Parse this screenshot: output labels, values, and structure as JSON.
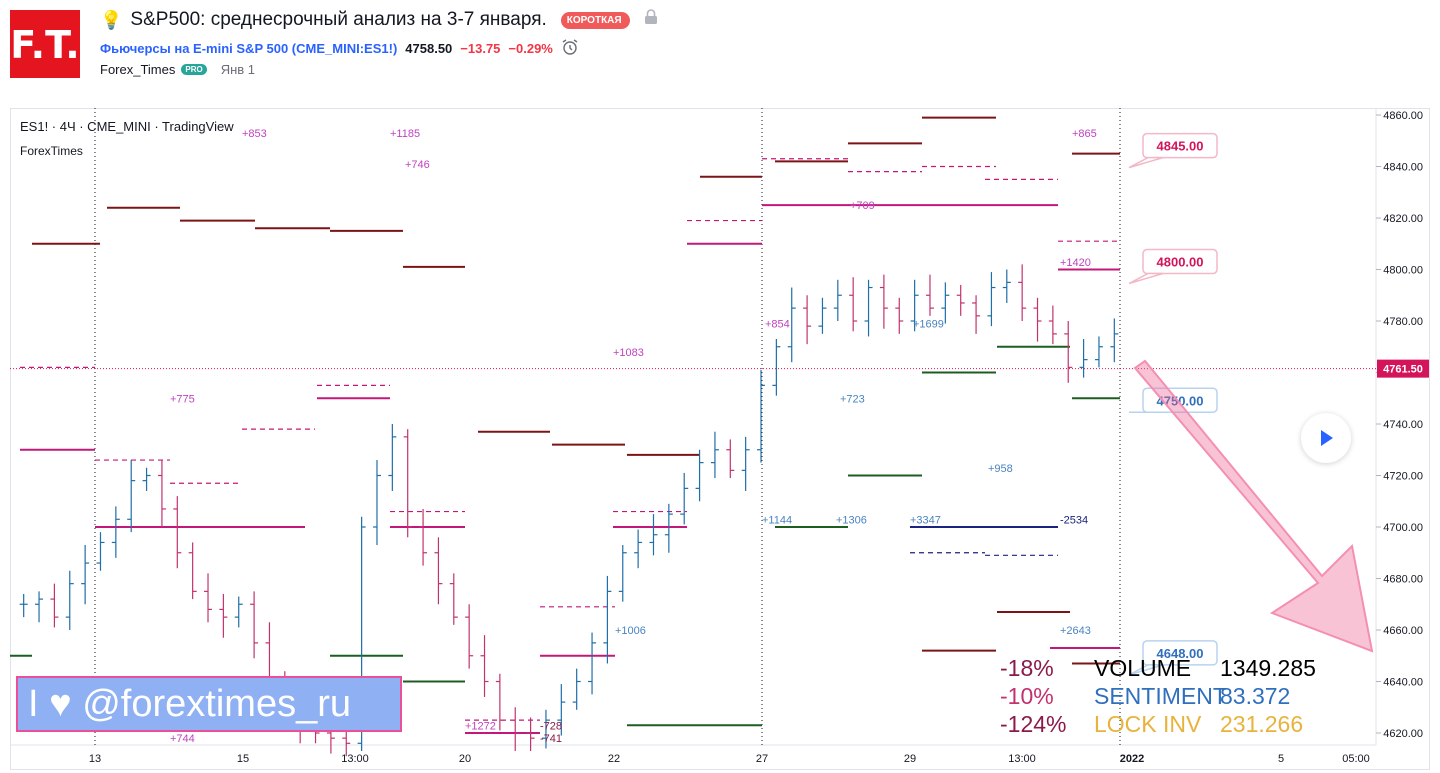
{
  "header": {
    "title": "S&P500: среднесрочный анализ на 3-7 января.",
    "badge": "КОРОТКАЯ",
    "symbol_name": "Фьючерсы на E-mini S&P 500",
    "symbol_code": "CME_MINI:ES1!",
    "price": "4758.50",
    "change": "−13.75",
    "change_pct": "−0.29%",
    "author": "Forex_Times",
    "author_badge": "PRO",
    "date": "Янв 1"
  },
  "logo": {
    "text": "F.T."
  },
  "legend": {
    "line1": "ES1! · 4Ч · CME_MINI · TradingView",
    "line2": "ForexTimes"
  },
  "watermark": {
    "text": "I ♥ @forextimes_ru"
  },
  "stats": [
    {
      "pct": "-18%",
      "label": "VOLUME",
      "value": "1349.285",
      "pct_color": "#8b1a4a",
      "color": "#000000"
    },
    {
      "pct": "-10%",
      "label": "SENTIMENT",
      "value": "83.372",
      "pct_color": "#c2326f",
      "color": "#2f6fbe"
    },
    {
      "pct": "-124%",
      "label": "LOCK INV",
      "value": "231.266",
      "pct_color": "#8b1a4a",
      "color": "#e8b33d"
    }
  ],
  "chart_data": {
    "type": "candlestick",
    "ylim": [
      4616,
      4862
    ],
    "y_ticks": [
      "4860.00",
      "4840.00",
      "4820.00",
      "4800.00",
      "4780.00",
      "4760.00",
      "4740.00",
      "4720.00",
      "4700.00",
      "4680.00",
      "4660.00",
      "4640.00",
      "4620.00"
    ],
    "x_ticks": [
      "13",
      "15",
      "13:00",
      "20",
      "22",
      "27",
      "29",
      "13:00",
      "2022",
      "5",
      "05:00"
    ],
    "current_price": "4761.50",
    "target_labels": [
      "4845.00",
      "4800.00",
      "4750.00",
      "4648.00"
    ],
    "level_annotations": [
      {
        "text": "+853",
        "y": 4853
      },
      {
        "text": "+1185",
        "y": 4853
      },
      {
        "text": "+746",
        "y": 4841
      },
      {
        "text": "+865",
        "y": 4853
      },
      {
        "text": "+709",
        "y": 4825
      },
      {
        "text": "+1420",
        "y": 4803
      },
      {
        "text": "+854",
        "y": 4779
      },
      {
        "text": "+1699",
        "y": 4779
      },
      {
        "text": "+1083",
        "y": 4768
      },
      {
        "text": "+775",
        "y": 4750
      },
      {
        "text": "+723",
        "y": 4750
      },
      {
        "text": "+958",
        "y": 4723
      },
      {
        "text": "+1144",
        "y": 4703
      },
      {
        "text": "+1306",
        "y": 4703
      },
      {
        "text": "+3347",
        "y": 4703
      },
      {
        "text": "-2534",
        "y": 4703
      },
      {
        "text": "+1006",
        "y": 4660
      },
      {
        "text": "+2643",
        "y": 4660
      },
      {
        "text": "+1272",
        "y": 4623
      },
      {
        "text": "-728",
        "y": 4623
      },
      {
        "text": "-741",
        "y": 4618
      },
      {
        "text": "+744",
        "y": 4618
      }
    ],
    "candles": [
      4670,
      4672,
      4665,
      4678,
      4686,
      4694,
      4703,
      4718,
      4720,
      4707,
      4690,
      4675,
      4668,
      4665,
      4670,
      4655,
      4640,
      4632,
      4625,
      4620,
      4618,
      4616,
      4700,
      4720,
      4735,
      4700,
      4690,
      4678,
      4665,
      4650,
      4640,
      4625,
      4620,
      4618,
      4625,
      4632,
      4640,
      4655,
      4675,
      4690,
      4694,
      4697,
      4705,
      4715,
      4725,
      4730,
      4722,
      4730,
      4755,
      4770,
      4785,
      4778,
      4785,
      4790,
      4780,
      4793,
      4785,
      4780,
      4790,
      4785,
      4790,
      4787,
      4782,
      4793,
      4795,
      4785,
      4780,
      4775,
      4762,
      4765,
      4770,
      4775
    ]
  }
}
